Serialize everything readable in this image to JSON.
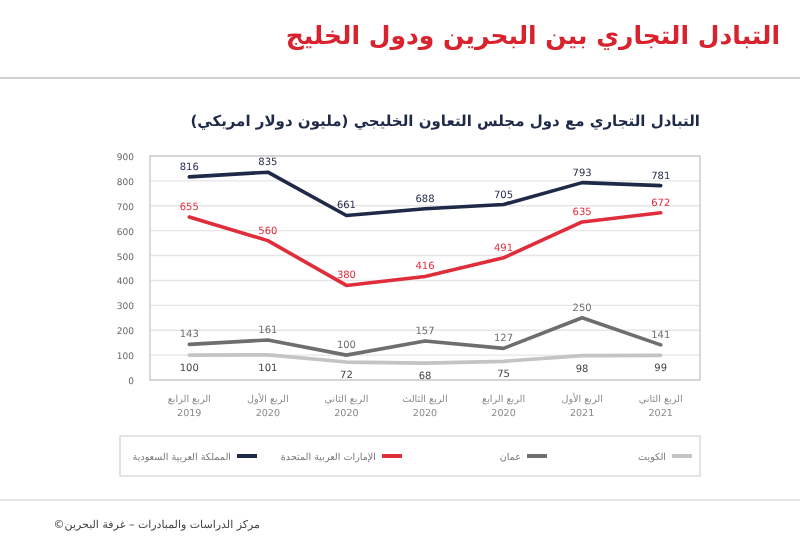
{
  "chart_data": {
    "type": "line",
    "title": "التبادل التجاري بين البحرين ودول الخليج",
    "subtitle": "التبادل التجاري مع دول مجلس التعاون الخليجي (مليون دولار امريكي)",
    "categories": [
      "الربع الرابع\n2019",
      "الربع الأول\n2020",
      "الربع الثاني\n2020",
      "الربع الثالث\n2020",
      "الربع الرابع\n2020",
      "الربع الأول\n2021",
      "الربع الثاني\n2021"
    ],
    "series": [
      {
        "name": "المملكة العربية السعودية",
        "color": "#1f2a48",
        "values": [
          816,
          835,
          661,
          688,
          705,
          793,
          781
        ]
      },
      {
        "name": "الإمارات العربية المتحدة",
        "color": "#e02d3c",
        "values": [
          655,
          560,
          380,
          416,
          491,
          635,
          672
        ]
      },
      {
        "name": "عمان",
        "color": "#6e6e6e",
        "values": [
          143,
          161,
          100,
          157,
          127,
          250,
          141
        ]
      },
      {
        "name": "الكويت",
        "color": "#c4c4c4",
        "values": [
          100,
          101,
          72,
          68,
          75,
          98,
          99
        ]
      }
    ],
    "ylim": [
      0,
      900
    ],
    "yticks": [
      0,
      100,
      200,
      300,
      400,
      500,
      600,
      700,
      800,
      900
    ],
    "grid": "y",
    "legend": "bottom",
    "data_labels": true,
    "marker": "none",
    "annotations": [
      "©مركز الدراسات والمبادرات – غرفة البحرين"
    ]
  }
}
